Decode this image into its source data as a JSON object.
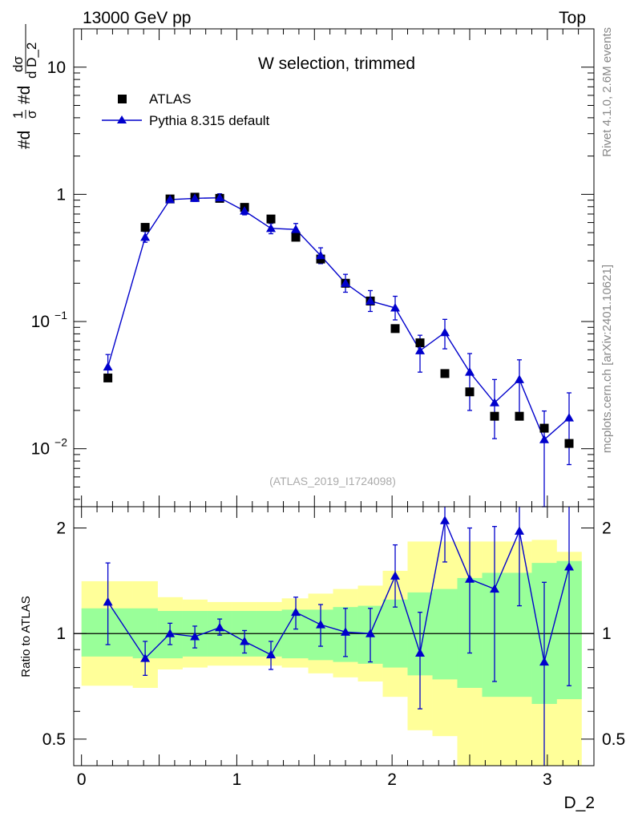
{
  "header": {
    "energy_label": "13000 GeV pp",
    "process_label": "Top"
  },
  "side_labels": {
    "rivet": "Rivet 4.1.0,  2.6M events",
    "source": "mcplots.cern.ch [arXiv:2401.10621]"
  },
  "chart_data": [
    {
      "type": "scatter",
      "title": "W selection, trimmed",
      "analysis_label": "(ATLAS_2019_I1724098)",
      "ylabel_parts": [
        "#d",
        "1",
        "σ",
        "#d",
        "dσ",
        "d D_2"
      ],
      "xlabel": "D_2",
      "yscale": "log",
      "ylim": [
        0.0035,
        20
      ],
      "xlim": [
        -0.05,
        3.3
      ],
      "y_ticks": [
        {
          "value": 10,
          "label": "10"
        },
        {
          "value": 1,
          "label": "1"
        },
        {
          "value": 0.1,
          "label": "10",
          "exp": "−1"
        },
        {
          "value": 0.01,
          "label": "10",
          "exp": "−2"
        }
      ],
      "x": [
        0.17,
        0.41,
        0.57,
        0.73,
        0.89,
        1.05,
        1.22,
        1.38,
        1.54,
        1.7,
        1.86,
        2.02,
        2.18,
        2.34,
        2.5,
        2.66,
        2.82,
        2.98,
        3.14
      ],
      "series": [
        {
          "name": "ATLAS",
          "marker": "square",
          "color": "#000000",
          "values": [
            0.036,
            0.55,
            0.92,
            0.95,
            0.93,
            0.79,
            0.64,
            0.46,
            0.31,
            0.2,
            0.145,
            0.088,
            0.068,
            0.039,
            0.028,
            0.018,
            0.018,
            0.0145,
            0.011
          ]
        },
        {
          "name": "Pythia 8.315 default",
          "marker": "triangle",
          "color": "#0000cc",
          "values": [
            0.044,
            0.46,
            0.91,
            0.93,
            0.94,
            0.74,
            0.54,
            0.53,
            0.33,
            0.2,
            0.145,
            0.128,
            0.059,
            0.082,
            0.04,
            0.023,
            0.035,
            0.0118,
            0.0175
          ],
          "err_lo": [
            0.009,
            0.04,
            0.04,
            0.05,
            0.06,
            0.05,
            0.05,
            0.06,
            0.045,
            0.03,
            0.025,
            0.025,
            0.019,
            0.021,
            0.02,
            0.011,
            0.016,
            0.0085,
            0.01
          ],
          "err_hi": [
            0.011,
            0.05,
            0.05,
            0.05,
            0.07,
            0.05,
            0.05,
            0.06,
            0.05,
            0.035,
            0.03,
            0.03,
            0.019,
            0.022,
            0.016,
            0.012,
            0.015,
            0.008,
            0.01
          ]
        }
      ]
    },
    {
      "type": "scatter",
      "ylabel": "Ratio to ATLAS",
      "yscale": "log",
      "ylim": [
        0.42,
        2.3
      ],
      "xlim": [
        -0.05,
        3.3
      ],
      "x_ticks": [
        0,
        1,
        2,
        3
      ],
      "y_ticks": [
        {
          "value": 2,
          "label": "2"
        },
        {
          "value": 1,
          "label": "1"
        },
        {
          "value": 0.5,
          "label": "0.5"
        }
      ],
      "reference_line": 1,
      "bands": {
        "edges": [
          0.0,
          0.33,
          0.49,
          0.65,
          0.81,
          0.97,
          1.13,
          1.29,
          1.46,
          1.62,
          1.78,
          1.94,
          2.1,
          2.26,
          2.42,
          2.58,
          2.74,
          2.9,
          3.06,
          3.22
        ],
        "inner": {
          "color": "#99ff99",
          "lo": [
            0.86,
            0.85,
            0.85,
            0.86,
            0.86,
            0.86,
            0.86,
            0.85,
            0.84,
            0.83,
            0.82,
            0.8,
            0.76,
            0.74,
            0.7,
            0.66,
            0.66,
            0.63,
            0.65
          ],
          "hi": [
            1.18,
            1.18,
            1.16,
            1.16,
            1.16,
            1.16,
            1.16,
            1.17,
            1.17,
            1.19,
            1.2,
            1.25,
            1.31,
            1.34,
            1.44,
            1.49,
            1.49,
            1.59,
            1.61
          ]
        },
        "outer": {
          "color": "#ffff99",
          "lo": [
            0.71,
            0.7,
            0.79,
            0.8,
            0.81,
            0.81,
            0.81,
            0.8,
            0.77,
            0.75,
            0.73,
            0.66,
            0.53,
            0.51,
            0.38,
            0.39,
            0.38,
            0.38,
            0.38
          ],
          "hi": [
            1.41,
            1.41,
            1.27,
            1.25,
            1.23,
            1.23,
            1.23,
            1.26,
            1.3,
            1.34,
            1.37,
            1.51,
            1.83,
            1.83,
            1.83,
            1.83,
            1.83,
            1.85,
            1.71
          ]
        }
      },
      "series": [
        {
          "name": "Pythia 8.315 default / ATLAS",
          "marker": "triangle",
          "color": "#0000cc",
          "values": [
            1.23,
            0.85,
            1.0,
            0.98,
            1.04,
            0.95,
            0.87,
            1.15,
            1.06,
            1.01,
            1.0,
            1.46,
            0.88,
            2.1,
            1.43,
            1.34,
            1.96,
            0.83,
            1.55
          ],
          "err_lo": [
            0.3,
            0.09,
            0.07,
            0.07,
            0.05,
            0.07,
            0.08,
            0.12,
            0.14,
            0.15,
            0.17,
            0.27,
            0.27,
            0.5,
            0.55,
            0.61,
            0.76,
            0.5,
            0.84
          ],
          "err_hi": [
            0.36,
            0.1,
            0.07,
            0.07,
            0.06,
            0.07,
            0.08,
            0.12,
            0.15,
            0.17,
            0.18,
            0.33,
            0.27,
            0.57,
            0.57,
            0.68,
            0.9,
            0.57,
            0.84
          ]
        }
      ]
    }
  ]
}
